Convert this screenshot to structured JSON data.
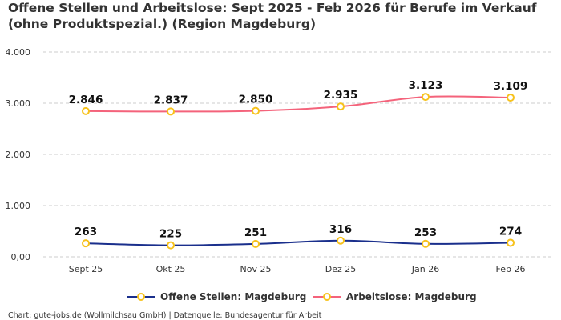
{
  "chart_data": {
    "type": "line",
    "title": "Offene Stellen und Arbeitslose: Sept 2025 - Feb 2026 für Berufe im Verkauf (ohne Produktspezial.) (Region Magdeburg)",
    "categories": [
      "Sept 25",
      "Okt 25",
      "Nov 25",
      "Dez 25",
      "Jan 26",
      "Feb 26"
    ],
    "series": [
      {
        "name": "Offene Stellen: Magdeburg",
        "color": "#1a2f8c",
        "values": [
          263,
          225,
          251,
          316,
          253,
          274
        ],
        "labels": [
          "263",
          "225",
          "251",
          "316",
          "253",
          "274"
        ]
      },
      {
        "name": "Arbeitslose: Magdeburg",
        "color": "#f4637b",
        "values": [
          2846,
          2837,
          2850,
          2935,
          3123,
          3109
        ],
        "labels": [
          "2.846",
          "2.837",
          "2.850",
          "2.935",
          "3.123",
          "3.109"
        ]
      }
    ],
    "marker_color": "#f7c21c",
    "ylim": [
      0,
      4000
    ],
    "yticks": [
      0,
      1000,
      2000,
      3000,
      4000
    ],
    "ytick_labels": [
      "0,00",
      "1.000",
      "2.000",
      "3.000",
      "4.000"
    ],
    "grid": true,
    "legend_placement": "bottom",
    "credit": "Chart: gute-jobs.de (Wollmilchsau GmbH) | Datenquelle: Bundesagentur für Arbeit"
  }
}
